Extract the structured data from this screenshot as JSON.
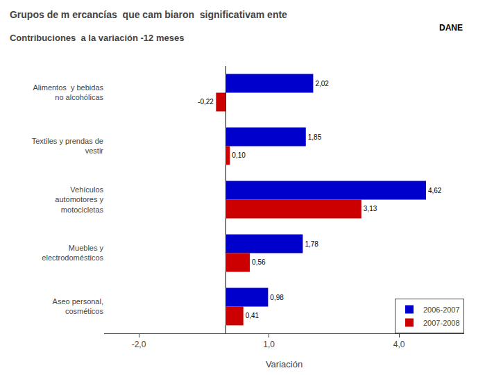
{
  "chart_data": {
    "type": "bar",
    "orientation": "horizontal",
    "title": "Grupos de m ercancías  que cam biaron  significativam ente",
    "subtitle": "Contribuciones  a la variación -12 meses",
    "x_label": "Variación",
    "categories": [
      "Alimentos  y bebidas\nno alcohólicas",
      "Textiles y prendas de\nvestir",
      "Vehículos\nautomotores y\nmotocicletas",
      "Muebles y\nelectrodomésticos",
      "Aseo personal,\ncosméticos"
    ],
    "series": [
      {
        "name": "2006-2007",
        "color": "#0000CC",
        "values": [
          2.02,
          1.85,
          4.62,
          1.78,
          0.98
        ],
        "value_labels": [
          "2,02",
          "1,85",
          "4,62",
          "1,78",
          "0,98"
        ]
      },
      {
        "name": "2007-2008",
        "color": "#CC0000",
        "values": [
          -0.22,
          0.1,
          3.13,
          0.56,
          0.41
        ],
        "value_labels": [
          "-0,22",
          "0,10",
          "3,13",
          "0,56",
          "0,41"
        ]
      }
    ],
    "xlim": [
      -2.8,
      5.5
    ],
    "xticks": [
      {
        "value": -2.0,
        "label": "-2,0"
      },
      {
        "value": 1.0,
        "label": "1,0"
      },
      {
        "value": 4.0,
        "label": "4,0"
      }
    ],
    "data_labels": true,
    "grid": false,
    "legend": "lower right",
    "annotations": [
      "DANE"
    ]
  }
}
